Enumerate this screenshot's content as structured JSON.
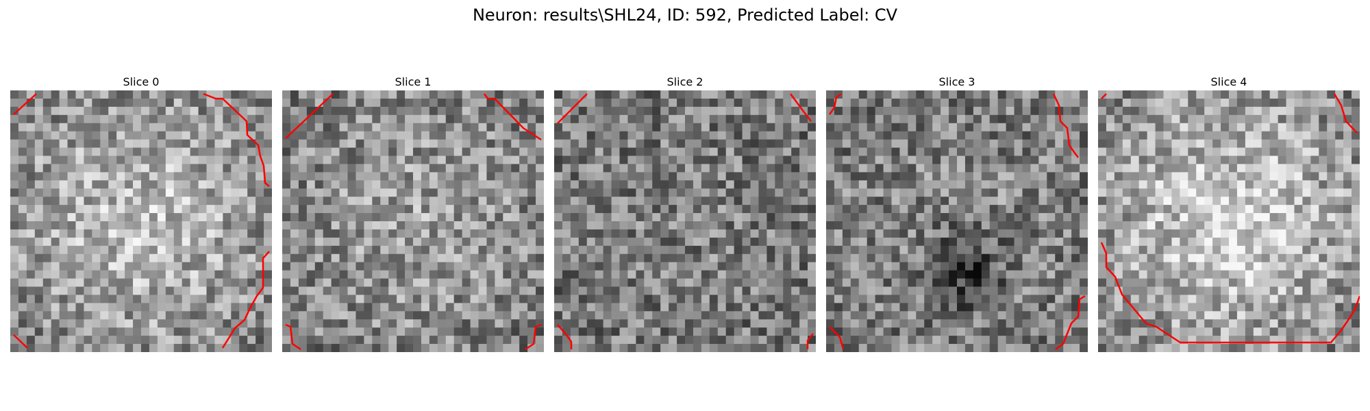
{
  "figure": {
    "suptitle": "Neuron: results\\SHL24, ID: 592, Predicted Label: CV"
  },
  "slices": [
    {
      "title": "Slice 0"
    },
    {
      "title": "Slice 1"
    },
    {
      "title": "Slice 2"
    },
    {
      "title": "Slice 3"
    },
    {
      "title": "Slice 4"
    }
  ],
  "colors": {
    "contour": "#ff0000",
    "colormap": "gray"
  }
}
